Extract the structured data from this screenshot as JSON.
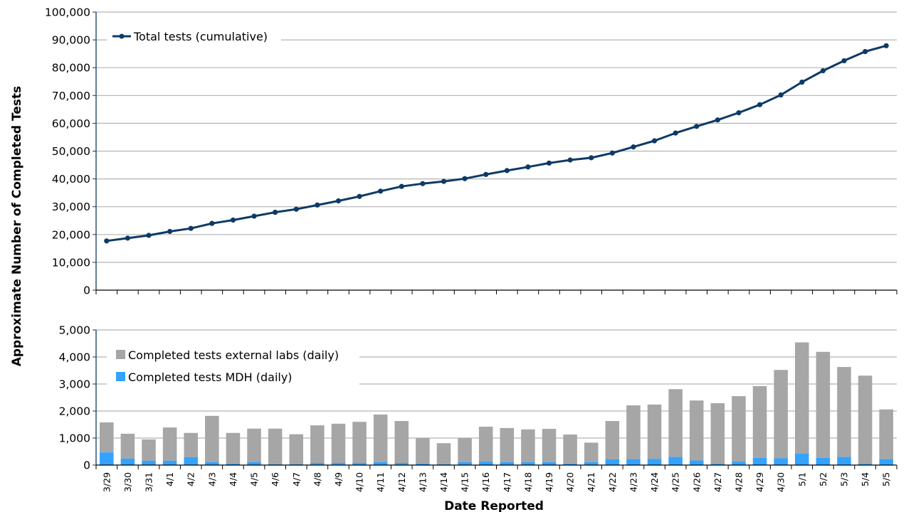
{
  "chart_data": [
    {
      "type": "line",
      "title": "",
      "xlabel": "",
      "ylabel": "Approximate Number of Completed Tests",
      "ylim": [
        0,
        100000
      ],
      "yticks": [
        0,
        10000,
        20000,
        30000,
        40000,
        50000,
        60000,
        70000,
        80000,
        90000,
        100000
      ],
      "ytick_labels": [
        "0",
        "10,000",
        "20,000",
        "30,000",
        "40,000",
        "50,000",
        "60,000",
        "70,000",
        "80,000",
        "90,000",
        "100,000"
      ],
      "grid": true,
      "legend_position": "top-left",
      "categories": [
        "3/29",
        "3/30",
        "3/31",
        "4/1",
        "4/2",
        "4/3",
        "4/4",
        "4/5",
        "4/6",
        "4/7",
        "4/8",
        "4/9",
        "4/10",
        "4/11",
        "4/12",
        "4/13",
        "4/14",
        "4/15",
        "4/16",
        "4/17",
        "4/18",
        "4/19",
        "4/20",
        "4/21",
        "4/22",
        "4/23",
        "4/24",
        "4/25",
        "4/26",
        "4/27",
        "4/28",
        "4/29",
        "4/30",
        "5/1",
        "5/2",
        "5/3",
        "5/4",
        "5/5"
      ],
      "series": [
        {
          "name": "Total tests (cumulative)",
          "color": "#0E3A66",
          "values": [
            17700,
            18700,
            19700,
            21100,
            22200,
            24000,
            25200,
            26600,
            28000,
            29100,
            30600,
            32100,
            33700,
            35600,
            37300,
            38300,
            39100,
            40100,
            41600,
            43000,
            44300,
            45700,
            46800,
            47600,
            49300,
            51500,
            53700,
            56500,
            58900,
            61200,
            63800,
            66700,
            70200,
            74800,
            78900,
            82500,
            85800,
            87900
          ]
        }
      ]
    },
    {
      "type": "bar",
      "stacked": true,
      "title": "",
      "xlabel": "Date Reported",
      "ylabel": "Approximate Number of Completed Tests",
      "ylim": [
        0,
        5000
      ],
      "yticks": [
        0,
        1000,
        2000,
        3000,
        4000,
        5000
      ],
      "ytick_labels": [
        "0",
        "1,000",
        "2,000",
        "3,000",
        "4,000",
        "5,000"
      ],
      "grid": true,
      "legend_position": "top-left",
      "categories": [
        "3/29",
        "3/30",
        "3/31",
        "4/1",
        "4/2",
        "4/3",
        "4/4",
        "4/5",
        "4/6",
        "4/7",
        "4/8",
        "4/9",
        "4/10",
        "4/11",
        "4/12",
        "4/13",
        "4/14",
        "4/15",
        "4/16",
        "4/17",
        "4/18",
        "4/19",
        "4/20",
        "4/21",
        "4/22",
        "4/23",
        "4/24",
        "4/25",
        "4/26",
        "4/27",
        "4/28",
        "4/29",
        "4/30",
        "5/1",
        "5/2",
        "5/3",
        "5/4",
        "5/5"
      ],
      "series": [
        {
          "name": "Completed tests MDH (daily)",
          "color": "#33A3FF",
          "values": [
            470,
            240,
            160,
            160,
            290,
            110,
            60,
            110,
            30,
            30,
            80,
            80,
            80,
            110,
            80,
            60,
            30,
            110,
            130,
            110,
            110,
            110,
            60,
            110,
            210,
            220,
            230,
            300,
            170,
            50,
            130,
            270,
            250,
            430,
            270,
            300,
            50,
            220
          ]
        },
        {
          "name": "Completed tests external labs (daily)",
          "color": "#A6A6A6",
          "values": [
            1110,
            920,
            790,
            1230,
            900,
            1710,
            1130,
            1240,
            1320,
            1110,
            1390,
            1450,
            1520,
            1760,
            1550,
            940,
            780,
            890,
            1290,
            1260,
            1210,
            1230,
            1070,
            720,
            1420,
            1990,
            2010,
            2510,
            2220,
            2240,
            2420,
            2650,
            3270,
            4110,
            3920,
            3330,
            3260,
            1840
          ]
        }
      ]
    }
  ],
  "axis_titles": {
    "y": "Approximate Number of Completed Tests",
    "x": "Date Reported"
  }
}
